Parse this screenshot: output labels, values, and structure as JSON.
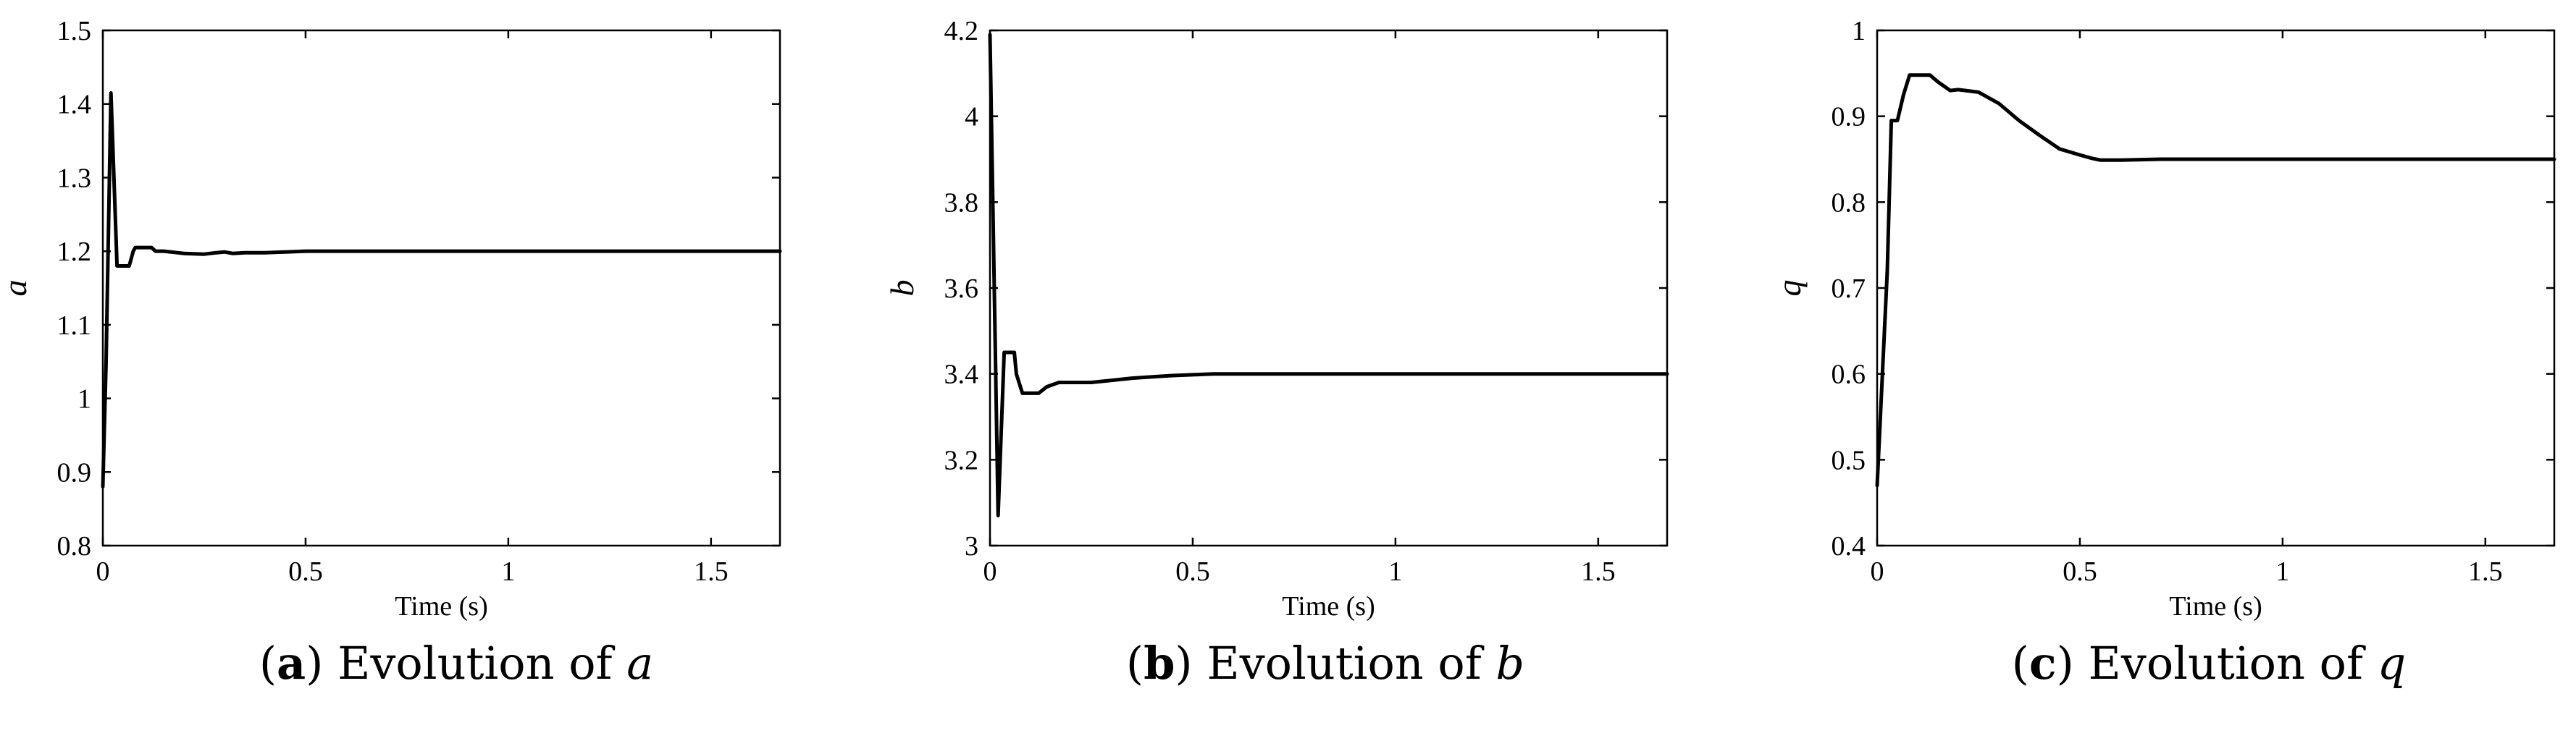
{
  "chart_data": [
    {
      "type": "line",
      "xlabel": "Time (s)",
      "ylabel": "a",
      "caption": {
        "letter": "a",
        "text": "Evolution of",
        "var": "a"
      },
      "xlim": [
        0,
        1.67
      ],
      "ylim": [
        0.8,
        1.5
      ],
      "xticks": [
        0,
        0.5,
        1,
        1.5
      ],
      "xtick_labels": [
        "0",
        "0.5",
        "1",
        "1.5"
      ],
      "yticks": [
        0.8,
        0.9,
        1.0,
        1.1,
        1.2,
        1.3,
        1.4,
        1.5
      ],
      "ytick_labels": [
        "0.8",
        "0.9",
        "1",
        "1.1",
        "1.2",
        "1.3",
        "1.4",
        "1.5"
      ],
      "series": [
        {
          "name": "a",
          "x": [
            0,
            0.008,
            0.02,
            0.035,
            0.05,
            0.065,
            0.075,
            0.08,
            0.1,
            0.12,
            0.13,
            0.15,
            0.2,
            0.25,
            0.28,
            0.3,
            0.32,
            0.35,
            0.4,
            0.45,
            0.5,
            0.55,
            1.0,
            1.67
          ],
          "y": [
            0.88,
            1.05,
            1.415,
            1.18,
            1.18,
            1.18,
            1.2,
            1.205,
            1.205,
            1.205,
            1.2,
            1.2,
            1.197,
            1.196,
            1.198,
            1.199,
            1.197,
            1.198,
            1.198,
            1.199,
            1.2,
            1.2,
            1.2,
            1.2
          ]
        }
      ]
    },
    {
      "type": "line",
      "xlabel": "Time (s)",
      "ylabel": "b",
      "caption": {
        "letter": "b",
        "text": "Evolution of",
        "var": "b"
      },
      "xlim": [
        0,
        1.67
      ],
      "ylim": [
        3.0,
        4.2
      ],
      "xticks": [
        0,
        0.5,
        1,
        1.5
      ],
      "xtick_labels": [
        "0",
        "0.5",
        "1",
        "1.5"
      ],
      "yticks": [
        3.0,
        3.2,
        3.4,
        3.6,
        3.8,
        4.0,
        4.2
      ],
      "ytick_labels": [
        "3",
        "3.2",
        "3.4",
        "3.6",
        "3.8",
        "4",
        "4.2"
      ],
      "series": [
        {
          "name": "b",
          "x": [
            0,
            0.02,
            0.035,
            0.04,
            0.06,
            0.065,
            0.08,
            0.12,
            0.14,
            0.17,
            0.2,
            0.25,
            0.3,
            0.35,
            0.4,
            0.45,
            0.5,
            0.55,
            1.0,
            1.67
          ],
          "y": [
            4.19,
            3.07,
            3.45,
            3.45,
            3.45,
            3.4,
            3.355,
            3.355,
            3.37,
            3.38,
            3.38,
            3.38,
            3.385,
            3.39,
            3.393,
            3.396,
            3.398,
            3.4,
            3.4,
            3.4
          ]
        }
      ]
    },
    {
      "type": "line",
      "xlabel": "Time (s)",
      "ylabel": "q",
      "caption": {
        "letter": "c",
        "text": "Evolution of",
        "var": "q"
      },
      "xlim": [
        0,
        1.67
      ],
      "ylim": [
        0.4,
        1.0
      ],
      "xticks": [
        0,
        0.5,
        1,
        1.5
      ],
      "xtick_labels": [
        "0",
        "0.5",
        "1",
        "1.5"
      ],
      "yticks": [
        0.4,
        0.5,
        0.6,
        0.7,
        0.8,
        0.9,
        1.0
      ],
      "ytick_labels": [
        "0.4",
        "0.5",
        "0.6",
        "0.7",
        "0.8",
        "0.9",
        "1"
      ],
      "series": [
        {
          "name": "q",
          "x": [
            0,
            0.025,
            0.035,
            0.05,
            0.065,
            0.08,
            0.1,
            0.13,
            0.15,
            0.18,
            0.2,
            0.25,
            0.3,
            0.35,
            0.4,
            0.45,
            0.5,
            0.53,
            0.55,
            0.6,
            0.7,
            1.0,
            1.67
          ],
          "y": [
            0.47,
            0.72,
            0.895,
            0.895,
            0.925,
            0.948,
            0.948,
            0.948,
            0.94,
            0.93,
            0.931,
            0.928,
            0.915,
            0.895,
            0.878,
            0.862,
            0.855,
            0.851,
            0.849,
            0.849,
            0.85,
            0.85,
            0.85
          ]
        }
      ]
    }
  ]
}
